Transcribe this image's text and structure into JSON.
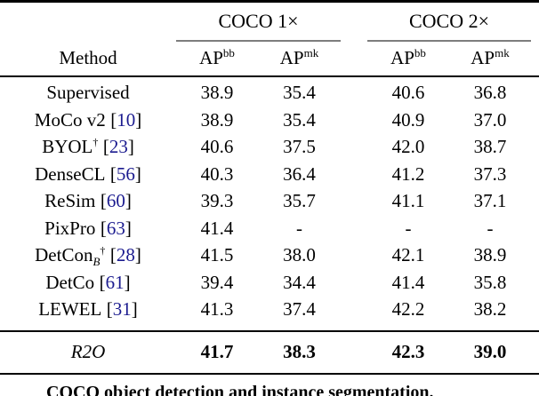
{
  "table": {
    "header": {
      "method": "Method",
      "groups": [
        {
          "label": "COCO 1×",
          "cols": [
            {
              "base": "AP",
              "sup": "bb"
            },
            {
              "base": "AP",
              "sup": "mk"
            }
          ]
        },
        {
          "label": "COCO 2×",
          "cols": [
            {
              "base": "AP",
              "sup": "bb"
            },
            {
              "base": "AP",
              "sup": "mk"
            }
          ]
        }
      ]
    },
    "rows": [
      {
        "method": {
          "name": "Supervised"
        },
        "values": [
          "38.9",
          "35.4",
          "40.6",
          "36.8"
        ]
      },
      {
        "method": {
          "name": "MoCo v2",
          "bl": "[",
          "cite": "10",
          "br": "]"
        },
        "values": [
          "38.9",
          "35.4",
          "40.9",
          "37.0"
        ]
      },
      {
        "method": {
          "name": "BYOL",
          "dagger": "†",
          "bl": "[",
          "cite": "23",
          "br": "]"
        },
        "values": [
          "40.6",
          "37.5",
          "42.0",
          "38.7"
        ]
      },
      {
        "method": {
          "name": "DenseCL",
          "bl": "[",
          "cite": "56",
          "br": "]"
        },
        "values": [
          "40.3",
          "36.4",
          "41.2",
          "37.3"
        ]
      },
      {
        "method": {
          "name": "ReSim",
          "bl": "[",
          "cite": "60",
          "br": "]"
        },
        "values": [
          "39.3",
          "35.7",
          "41.1",
          "37.1"
        ]
      },
      {
        "method": {
          "name": "PixPro",
          "bl": "[",
          "cite": "63",
          "br": "]"
        },
        "values": [
          "41.4",
          "-",
          "-",
          "-"
        ]
      },
      {
        "method": {
          "name": "DetCon",
          "sub": "B",
          "dagger": "†",
          "bl": "[",
          "cite": "28",
          "br": "]"
        },
        "values": [
          "41.5",
          "38.0",
          "42.1",
          "38.9"
        ]
      },
      {
        "method": {
          "name": "DetCo",
          "bl": "[",
          "cite": "61",
          "br": "]"
        },
        "values": [
          "39.4",
          "34.4",
          "41.4",
          "35.8"
        ]
      },
      {
        "method": {
          "name": "LEWEL",
          "bl": "[",
          "cite": "31",
          "br": "]"
        },
        "values": [
          "41.3",
          "37.4",
          "42.2",
          "38.2"
        ]
      }
    ],
    "final_row": {
      "method_name": "R2O",
      "values": [
        "41.7",
        "38.3",
        "42.3",
        "39.0"
      ]
    }
  },
  "caption": {
    "text": "COCO object detection and instance segmentation."
  },
  "colors": {
    "citation": "#1b1b8f",
    "cmidrule": "#7d7d7d"
  }
}
